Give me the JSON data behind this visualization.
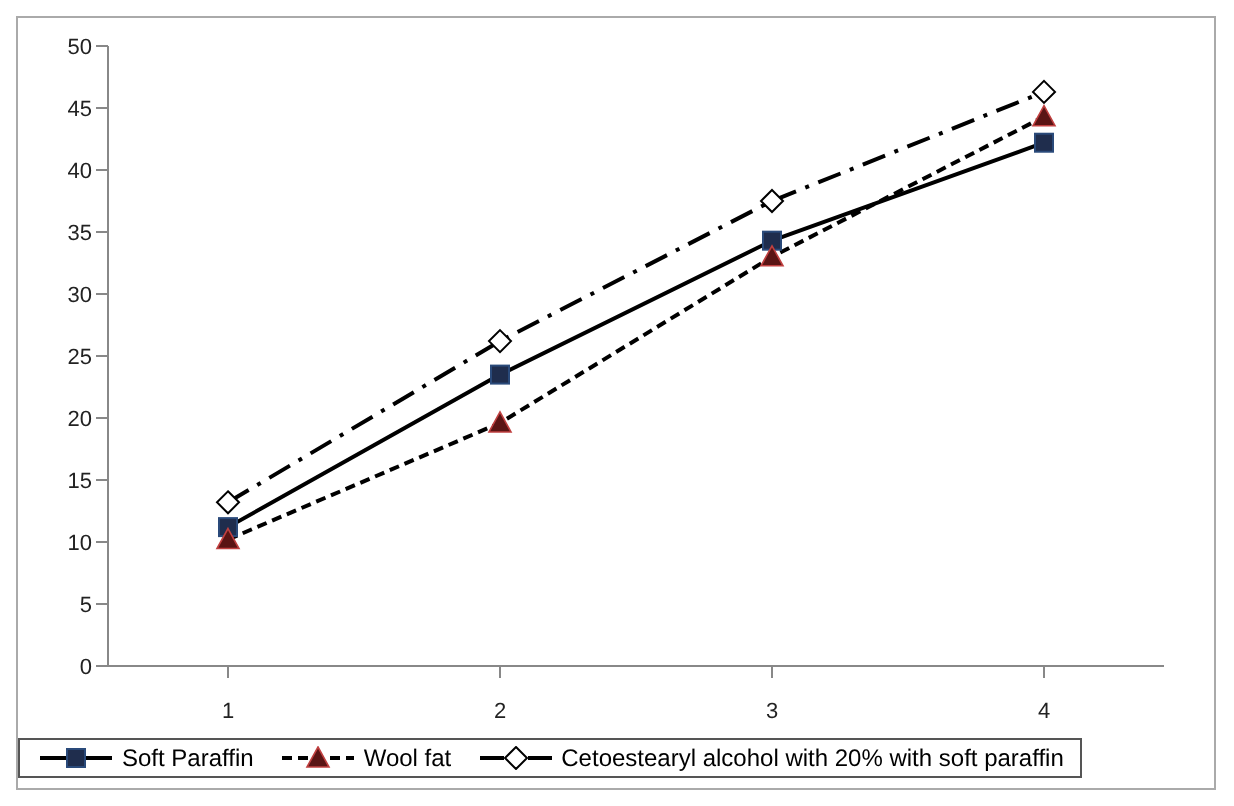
{
  "chart_data": {
    "type": "line",
    "categories": [
      "1",
      "2",
      "3",
      "4"
    ],
    "series": [
      {
        "name": "Soft Paraffin",
        "color": "#1f2d4d",
        "values": [
          11.2,
          23.5,
          34.3,
          42.2
        ],
        "marker": "square",
        "line_style": "solid"
      },
      {
        "name": "Wool fat",
        "color": "#5a1414",
        "values": [
          10.2,
          19.6,
          33,
          44.3
        ],
        "marker": "triangle",
        "line_style": "dashed"
      },
      {
        "name": "Cetoestearyl alcohol with 20% with soft paraffin",
        "color": "#000000",
        "values": [
          13.2,
          26.2,
          37.5,
          46.3
        ],
        "marker": "diamond",
        "line_style": "dashdot"
      }
    ],
    "ylim": [
      0,
      50
    ],
    "yticks": [
      0,
      5,
      10,
      15,
      20,
      25,
      30,
      35,
      40,
      45,
      50
    ],
    "grid": false,
    "legend": "bottom"
  }
}
